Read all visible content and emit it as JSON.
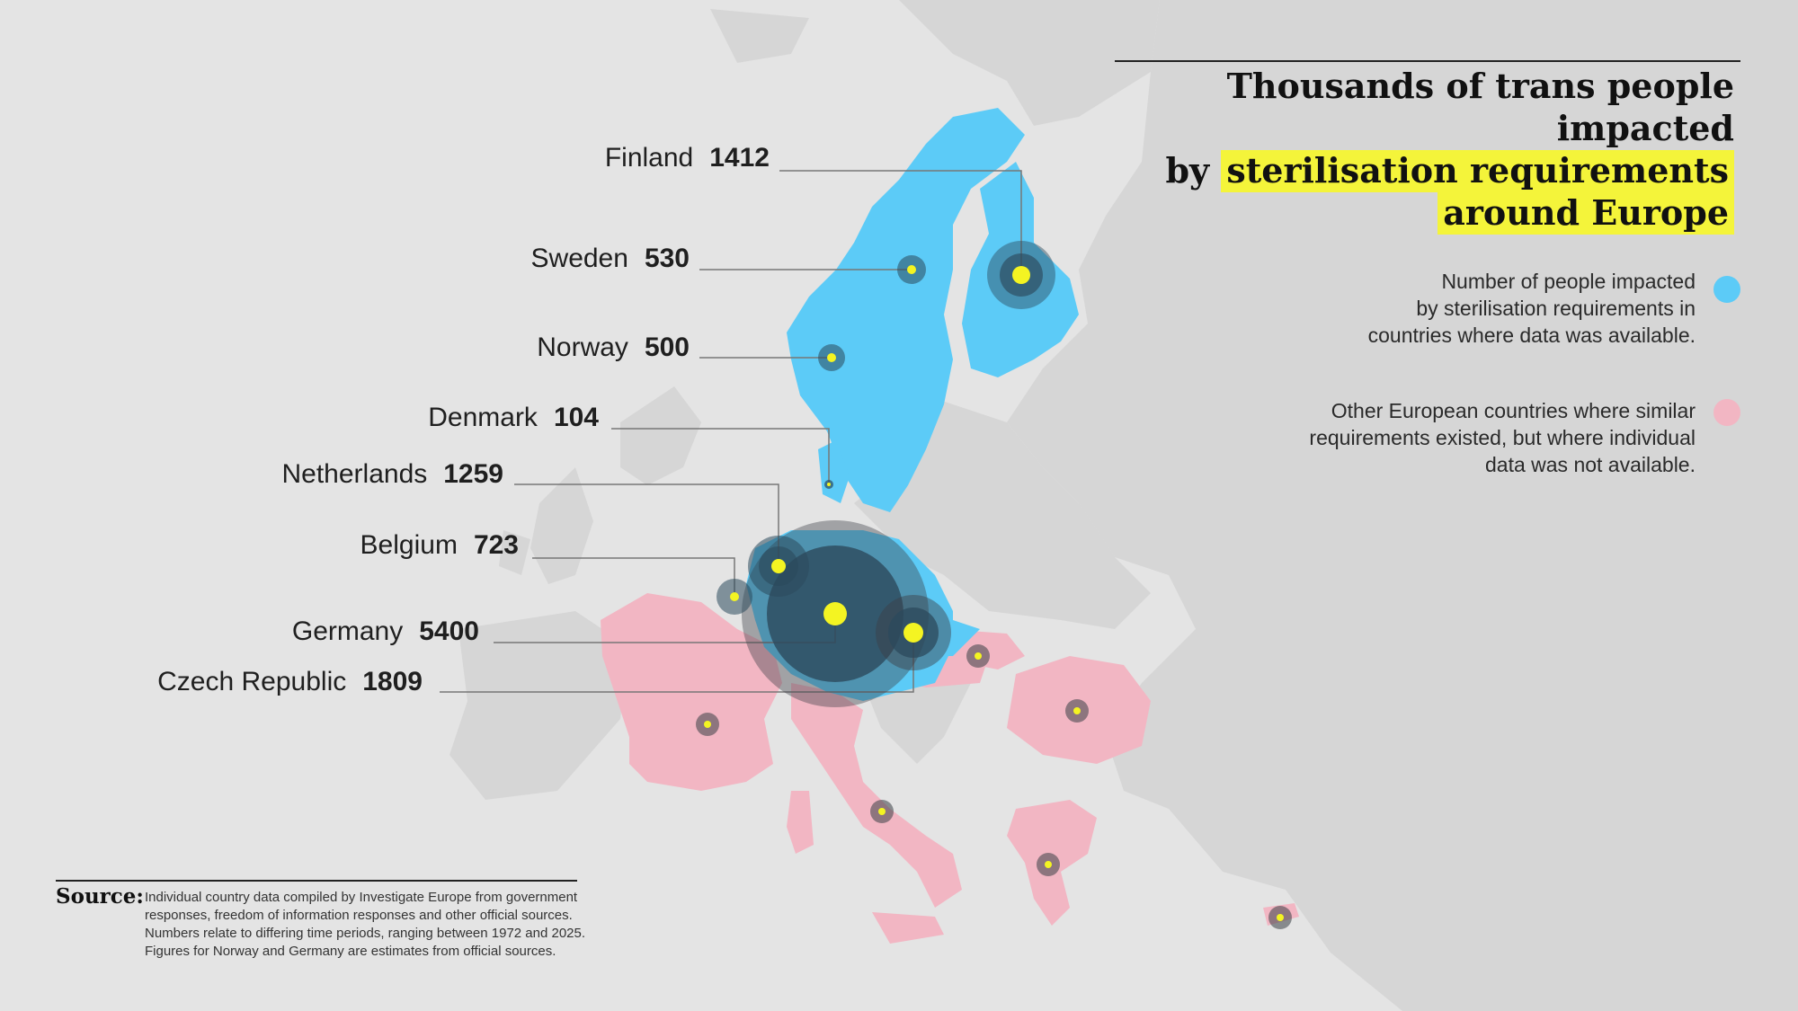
{
  "title": {
    "line1": "Thousands of trans people impacted",
    "line2_prefix": "by ",
    "line2_highlight": "sterilisation requirements",
    "line3_highlight": "around Europe"
  },
  "legend": {
    "data_available": {
      "line1": "Number of people impacted",
      "line2": "by sterilisation requirements in",
      "line3": "countries where data was available.",
      "color": "#5ccbf7"
    },
    "no_data": {
      "line1": "Other European countries where similar",
      "line2": "requirements existed, but where individual",
      "line3": "data was not available.",
      "color": "#f2b6c3"
    }
  },
  "countries": [
    {
      "name": "Finland",
      "value": "1412"
    },
    {
      "name": "Sweden",
      "value": "530"
    },
    {
      "name": "Norway",
      "value": "500"
    },
    {
      "name": "Denmark",
      "value": "104"
    },
    {
      "name": "Netherlands",
      "value": "1259"
    },
    {
      "name": "Belgium",
      "value": "723"
    },
    {
      "name": "Germany",
      "value": "5400"
    },
    {
      "name": "Czech Republic",
      "value": "1809"
    }
  ],
  "source": {
    "label": "Source:",
    "text": "Individual country data compiled by Investigate Europe from government responses, freedom of information responses and other official sources. Numbers relate to differing time periods, ranging between 1972 and 2025. Figures for Norway and Germany are estimates from official sources."
  },
  "colors": {
    "background": "#e4e4e4",
    "land": "#d7d7d7",
    "data_country": "#5ccbf7",
    "no_data_country": "#f2b6c3",
    "bubble": "#2c4a5c",
    "marker": "#f4f422"
  }
}
